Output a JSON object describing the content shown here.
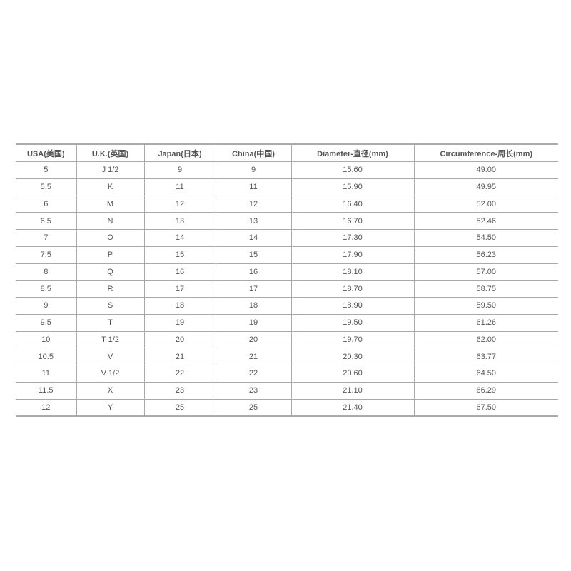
{
  "table": {
    "headers": [
      "USA(美国)",
      "U.K.(英国)",
      "Japan(日本)",
      "China(中国)",
      "Diameter-直径(mm)",
      "Circumference-周长(mm)"
    ],
    "rows": [
      [
        "5",
        "J 1/2",
        "9",
        "9",
        "15.60",
        "49.00"
      ],
      [
        "5.5",
        "K",
        "11",
        "11",
        "15.90",
        "49.95"
      ],
      [
        "6",
        "M",
        "12",
        "12",
        "16.40",
        "52.00"
      ],
      [
        "6.5",
        "N",
        "13",
        "13",
        "16.70",
        "52.46"
      ],
      [
        "7",
        "O",
        "14",
        "14",
        "17.30",
        "54.50"
      ],
      [
        "7.5",
        "P",
        "15",
        "15",
        "17.90",
        "56.23"
      ],
      [
        "8",
        "Q",
        "16",
        "16",
        "18.10",
        "57.00"
      ],
      [
        "8.5",
        "R",
        "17",
        "17",
        "18.70",
        "58.75"
      ],
      [
        "9",
        "S",
        "18",
        "18",
        "18.90",
        "59.50"
      ],
      [
        "9.5",
        "T",
        "19",
        "19",
        "19.50",
        "61.26"
      ],
      [
        "10",
        "T 1/2",
        "20",
        "20",
        "19.70",
        "62.00"
      ],
      [
        "10.5",
        "V",
        "21",
        "21",
        "20.30",
        "63.77"
      ],
      [
        "11",
        "V 1/2",
        "22",
        "22",
        "20.60",
        "64.50"
      ],
      [
        "11.5",
        "X",
        "23",
        "23",
        "21.10",
        "66.29"
      ],
      [
        "12",
        "Y",
        "25",
        "25",
        "21.40",
        "67.50"
      ]
    ]
  }
}
